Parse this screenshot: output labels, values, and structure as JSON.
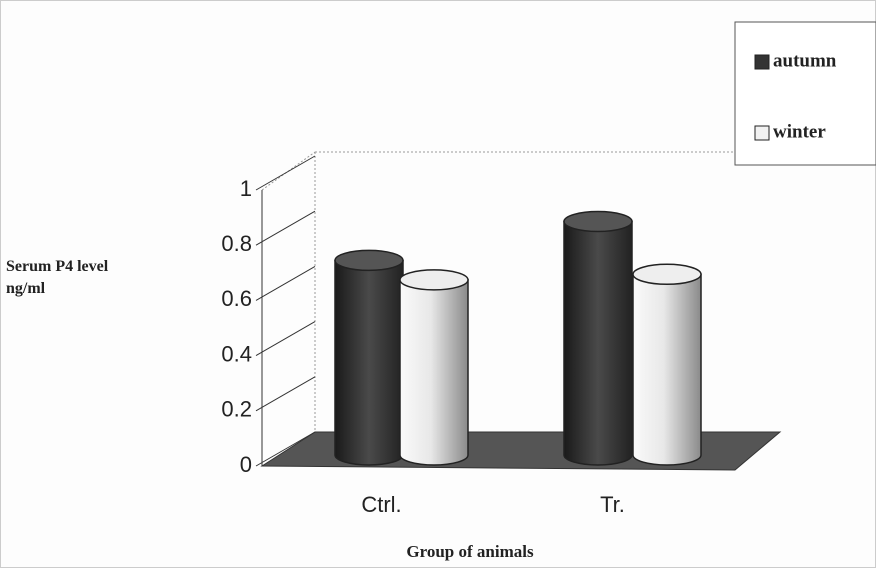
{
  "chart_data": {
    "type": "bar3d",
    "y_label": "Serum P4 level ng/ml",
    "x_label": "Group of animals",
    "categories": [
      "Ctrl.",
      "Tr."
    ],
    "series": [
      {
        "name": "autumn",
        "color": "#333333",
        "values": [
          0.7,
          0.84
        ]
      },
      {
        "name": "winter",
        "color": "#f2f2f2",
        "values": [
          0.63,
          0.65
        ]
      }
    ],
    "ylim": [
      0,
      1
    ],
    "yticks": [
      0,
      0.2,
      0.4,
      0.6,
      0.8,
      1
    ],
    "legend": "top-right"
  }
}
